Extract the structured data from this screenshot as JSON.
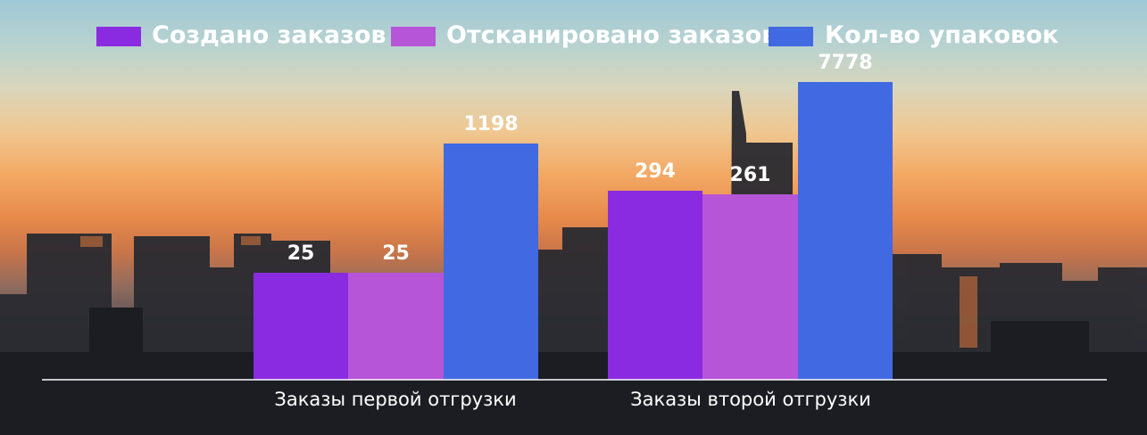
{
  "chart_data": {
    "type": "bar",
    "categories": [
      "Заказы первой отгрузки",
      "Заказы второй отгрузки"
    ],
    "series": [
      {
        "name": "Создано заказов",
        "color": "#8a2be2",
        "values": [
          25,
          294
        ]
      },
      {
        "name": "Отсканировано заказов",
        "color": "#b655d8",
        "values": [
          25,
          261
        ]
      },
      {
        "name": "Кол-во упаковок",
        "color": "#4169e1",
        "values": [
          1198,
          7778
        ]
      }
    ],
    "legend_position": "top",
    "grid": false,
    "axis_line_color": "#ffffff",
    "y_scale": "nonlinear"
  }
}
